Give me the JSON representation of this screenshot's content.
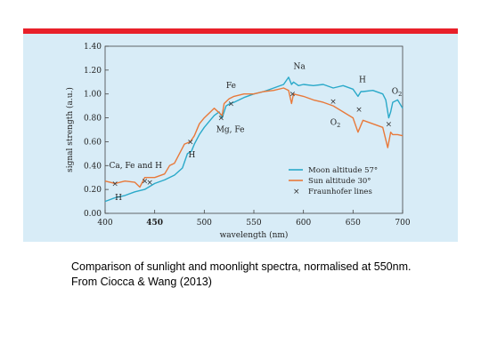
{
  "colors": {
    "panel": "#d8ecf7",
    "topbar": "#e8202a",
    "moon": "#2aa9c9",
    "sun": "#e8793a",
    "fraunhofer": "#333333"
  },
  "caption": {
    "line1": "Comparison of sunlight and moonlight spectra, normalised at 550nm.",
    "line2": "From Ciocca & Wang (2013)"
  },
  "chart_data": {
    "type": "line",
    "xlabel": "wavelength (nm)",
    "ylabel": "signal strength (a.u.)",
    "xlim": [
      400,
      700
    ],
    "ylim": [
      0,
      1.4
    ],
    "xticks": [
      "400",
      "450",
      "500",
      "550",
      "600",
      "650",
      "700"
    ],
    "yticks": [
      "0.00",
      "0.20",
      "0.40",
      "0.60",
      "0.80",
      "1.00",
      "1.20",
      "1.40"
    ],
    "legend_position": "bottom-right",
    "series": [
      {
        "name": "Moon altitude 57°",
        "color": "#2aa9c9",
        "x": [
          400,
          410,
          420,
          430,
          440,
          450,
          460,
          470,
          478,
          483,
          487,
          490,
          495,
          500,
          505,
          510,
          515,
          518,
          522,
          526,
          530,
          540,
          550,
          560,
          570,
          580,
          585,
          588,
          590,
          595,
          600,
          610,
          620,
          630,
          640,
          650,
          655,
          658,
          660,
          670,
          680,
          683,
          686,
          688,
          690,
          695,
          700
        ],
        "y": [
          0.1,
          0.13,
          0.15,
          0.18,
          0.2,
          0.25,
          0.28,
          0.32,
          0.38,
          0.5,
          0.52,
          0.58,
          0.66,
          0.72,
          0.77,
          0.82,
          0.85,
          0.8,
          0.9,
          0.92,
          0.93,
          0.97,
          1.0,
          1.02,
          1.05,
          1.08,
          1.14,
          1.08,
          1.1,
          1.07,
          1.08,
          1.07,
          1.08,
          1.05,
          1.07,
          1.04,
          0.98,
          1.02,
          1.02,
          1.03,
          1.0,
          0.95,
          0.8,
          0.85,
          0.93,
          0.95,
          0.88
        ]
      },
      {
        "name": "Sun altitude 30°",
        "color": "#e8793a",
        "x": [
          400,
          410,
          420,
          430,
          435,
          440,
          450,
          460,
          465,
          470,
          480,
          486,
          490,
          495,
          500,
          505,
          510,
          518,
          520,
          525,
          530,
          540,
          550,
          560,
          570,
          580,
          585,
          588,
          590,
          600,
          610,
          620,
          630,
          640,
          650,
          655,
          660,
          670,
          680,
          685,
          688,
          690,
          695,
          700
        ],
        "y": [
          0.27,
          0.25,
          0.27,
          0.26,
          0.22,
          0.3,
          0.3,
          0.33,
          0.4,
          0.42,
          0.58,
          0.6,
          0.65,
          0.75,
          0.8,
          0.84,
          0.88,
          0.82,
          0.92,
          0.96,
          0.98,
          1.0,
          1.0,
          1.02,
          1.03,
          1.05,
          1.03,
          0.92,
          1.0,
          0.98,
          0.95,
          0.93,
          0.9,
          0.85,
          0.8,
          0.68,
          0.78,
          0.75,
          0.72,
          0.55,
          0.68,
          0.66,
          0.66,
          0.65
        ]
      }
    ],
    "fraunhofer": {
      "name": "Fraunhofer lines",
      "x": [
        410,
        440,
        445,
        486,
        517,
        527,
        589,
        630,
        656,
        686
      ],
      "y": [
        0.25,
        0.27,
        0.26,
        0.6,
        0.8,
        0.92,
        1.0,
        0.94,
        0.87,
        0.75
      ]
    },
    "annotations": [
      {
        "text": "H",
        "x": 410,
        "y": 0.11
      },
      {
        "text": "Ca, Fe and H",
        "x": 404,
        "y": 0.38
      },
      {
        "text": "H",
        "x": 484,
        "y": 0.47
      },
      {
        "text": "Mg, Fe",
        "x": 512,
        "y": 0.68
      },
      {
        "text": "Fe",
        "x": 522,
        "y": 1.05
      },
      {
        "text": "Na",
        "x": 590,
        "y": 1.21
      },
      {
        "text": "H",
        "x": 656,
        "y": 1.1
      },
      {
        "text": "O2",
        "x": 627,
        "y": 0.74
      },
      {
        "text": "O2",
        "x": 689,
        "y": 1.0
      }
    ]
  }
}
